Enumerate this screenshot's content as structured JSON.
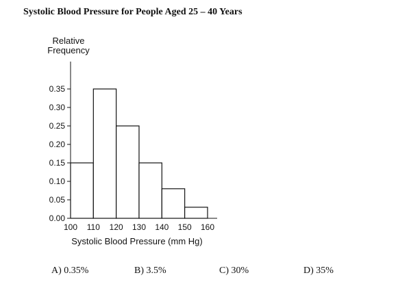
{
  "chart_data": {
    "type": "histogram",
    "title": "Systolic Blood Pressure for People Aged 25 – 40 Years",
    "ylabel_lines": [
      "Relative",
      "Frequency"
    ],
    "xlabel": "Systolic Blood Pressure (mm Hg)",
    "bins": [
      {
        "from": 100,
        "to": 110,
        "value": 0.15
      },
      {
        "from": 110,
        "to": 120,
        "value": 0.35
      },
      {
        "from": 120,
        "to": 130,
        "value": 0.25
      },
      {
        "from": 130,
        "to": 140,
        "value": 0.15
      },
      {
        "from": 140,
        "to": 150,
        "value": 0.08
      },
      {
        "from": 150,
        "to": 160,
        "value": 0.03
      }
    ],
    "xticks": [
      100,
      110,
      120,
      130,
      140,
      150,
      160
    ],
    "yticks": [
      "0.00",
      "0.05",
      "0.10",
      "0.15",
      "0.20",
      "0.25",
      "0.30",
      "0.35"
    ],
    "xlim": [
      100,
      160
    ],
    "ylim": [
      0,
      0.35
    ],
    "grid": false
  },
  "choices": [
    {
      "label": "A) 0.35%"
    },
    {
      "label": "B) 3.5%"
    },
    {
      "label": "C) 30%"
    },
    {
      "label": "D) 35%"
    }
  ]
}
